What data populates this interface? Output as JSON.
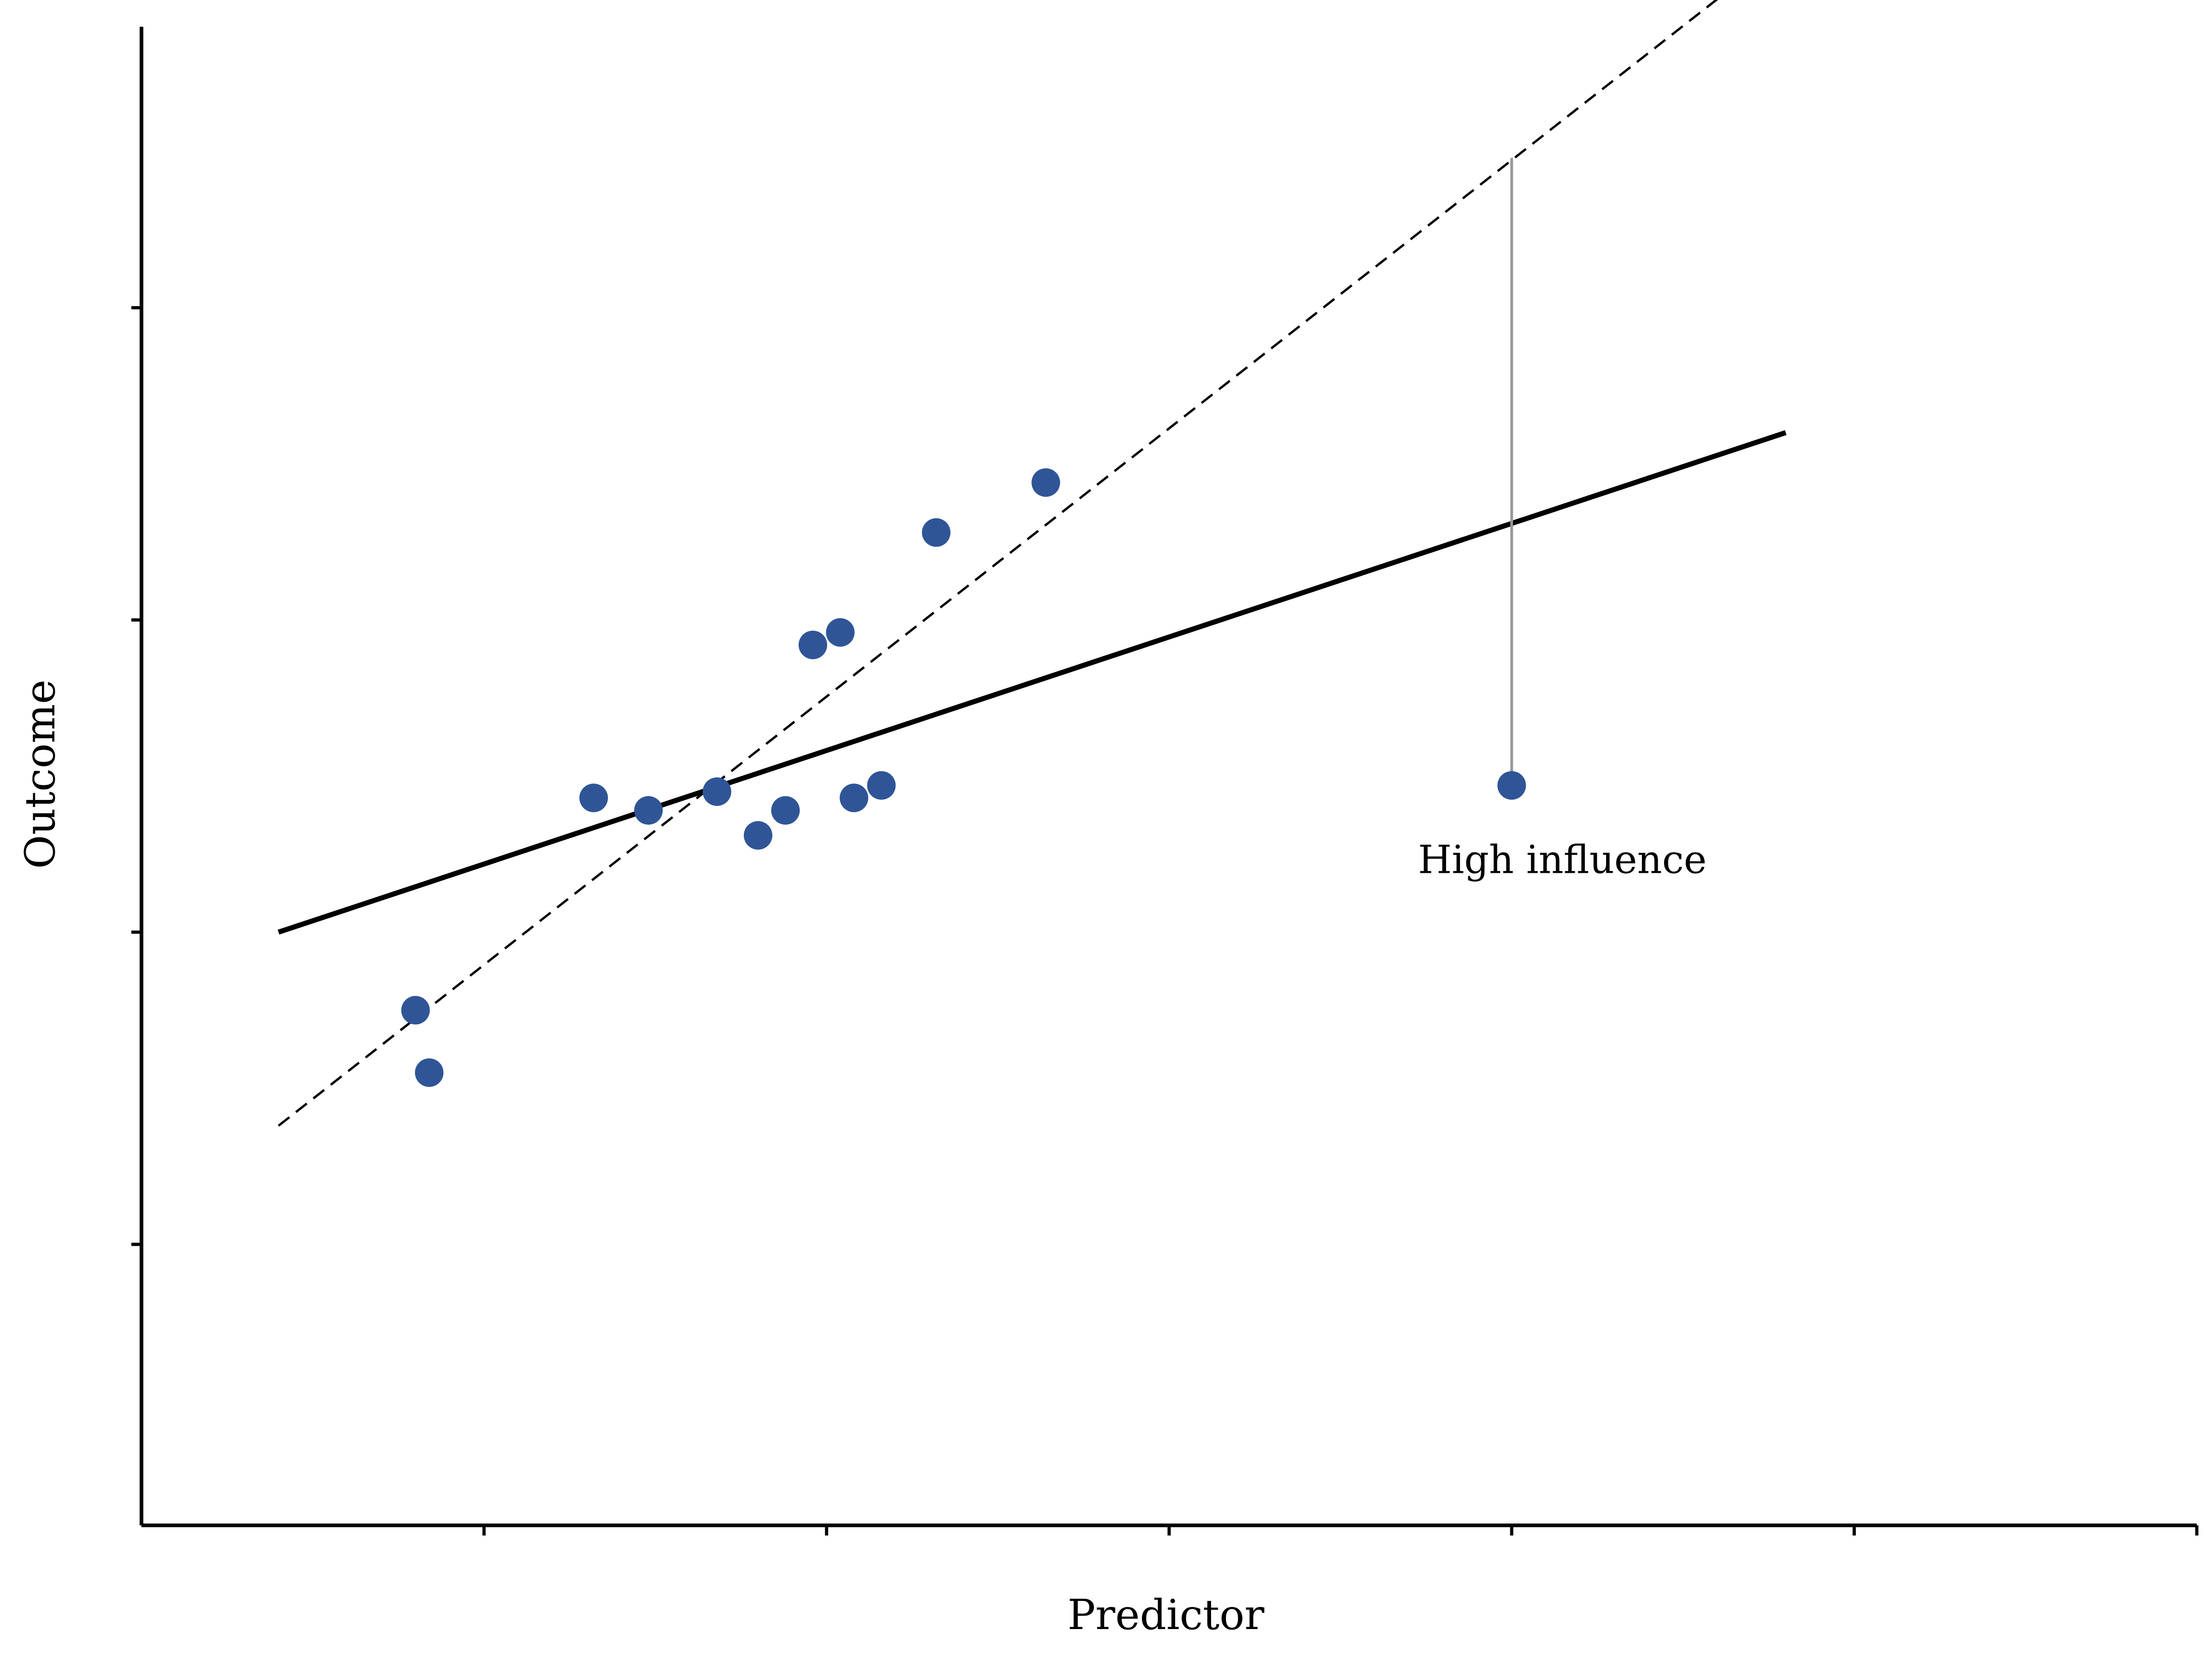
{
  "chart_data": {
    "type": "scatter",
    "title": "",
    "xlabel": "Predictor",
    "ylabel": "Outcome",
    "xlim": [
      -1.0,
      5.0
    ],
    "ylim": [
      -0.9,
      3.9
    ],
    "xticks": [
      0,
      1,
      2,
      3,
      4,
      5
    ],
    "yticks": [
      0,
      1,
      2,
      3,
      4
    ],
    "tick_labels_shown": false,
    "grid": false,
    "legend": "none",
    "points": [
      {
        "x": -0.2,
        "y": 0.75
      },
      {
        "x": -0.16,
        "y": 0.55
      },
      {
        "x": 0.32,
        "y": 1.43
      },
      {
        "x": 0.48,
        "y": 1.39
      },
      {
        "x": 0.68,
        "y": 1.45
      },
      {
        "x": 0.8,
        "y": 1.31
      },
      {
        "x": 0.88,
        "y": 1.39
      },
      {
        "x": 0.96,
        "y": 1.92
      },
      {
        "x": 1.04,
        "y": 1.96
      },
      {
        "x": 1.08,
        "y": 1.43
      },
      {
        "x": 1.16,
        "y": 1.47
      },
      {
        "x": 1.32,
        "y": 2.28
      },
      {
        "x": 1.64,
        "y": 2.44
      },
      {
        "x": 3.0,
        "y": 1.47
      }
    ],
    "lines": [
      {
        "style": "solid",
        "x": [
          -0.6,
          3.8
        ],
        "y": [
          1.0,
          2.6
        ]
      },
      {
        "style": "dashed",
        "x": [
          -0.6,
          3.8
        ],
        "y": [
          0.38,
          4.16
        ]
      }
    ],
    "annotation": {
      "text": "High influence",
      "x": 3.0,
      "y_from": 1.47,
      "y_to": 3.48
    },
    "colors": {
      "points": "#2f5597",
      "fit_line": "#000000",
      "leverage_line": "#999999"
    }
  }
}
